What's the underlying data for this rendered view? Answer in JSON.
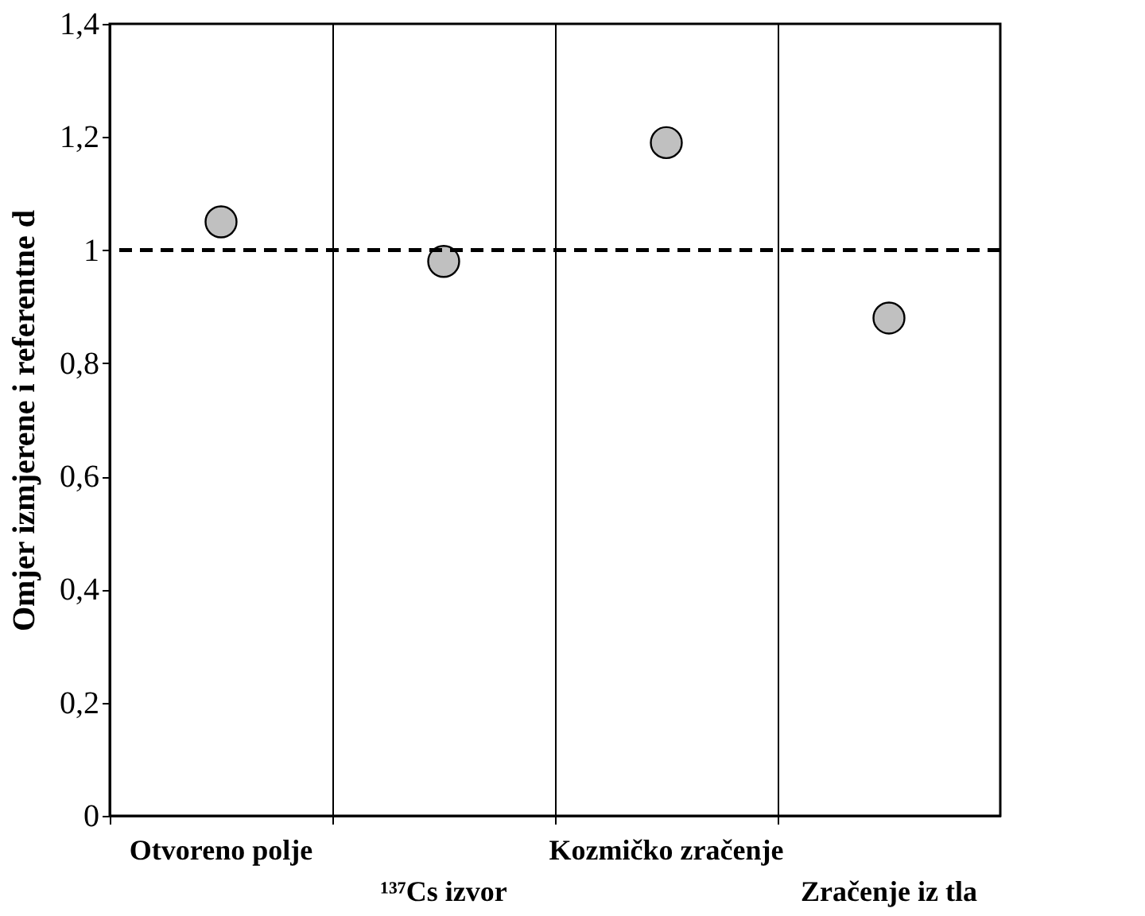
{
  "chart_data": {
    "type": "scatter",
    "ylabel": "Omjer izmjerene i referentne d",
    "categories": [
      "Otvoreno polje",
      "¹³⁷Cs izvor",
      "Kozmičko zračenje",
      "Zračenje iz tla"
    ],
    "series": [
      {
        "color": "#c0c0c0",
        "values": [
          1.05,
          0.98,
          1.19,
          0.88
        ]
      }
    ],
    "marker": "circle",
    "ylim": [
      0,
      1.4
    ],
    "yticks": [
      0,
      {
        "value": 0.2,
        "label": "0,2"
      },
      {
        "value": 0.4,
        "label": "0,4"
      },
      {
        "value": 0.6,
        "label": "0,6"
      },
      {
        "value": 0.8,
        "label": "0,8"
      },
      1,
      {
        "value": 1.2,
        "label": "1,2"
      },
      {
        "value": 1.4,
        "label": "1,4"
      }
    ],
    "ref_lines": [
      {
        "axis": "y",
        "value": 1,
        "color": "#000000",
        "line_style": "dashed"
      }
    ],
    "grid": "x"
  }
}
